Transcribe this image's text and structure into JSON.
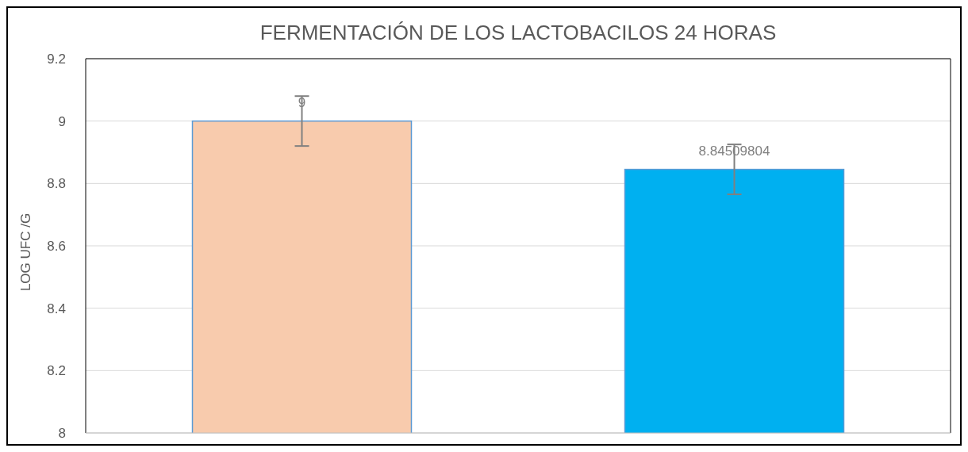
{
  "chart_data": {
    "type": "bar",
    "title": "FERMENTACIÓN  DE  LOS LACTOBACILOS 24  HORAS",
    "ylabel": "LOG  UFC /G",
    "categories": [
      null,
      null
    ],
    "values": [
      9,
      8.84509804
    ],
    "colors": [
      "#f8cbad",
      "#00b0f0"
    ],
    "errors": [
      0.08,
      0.08
    ],
    "ylim": [
      8,
      9.2
    ],
    "yticks": [
      8,
      8.2,
      8.4,
      8.6,
      8.8,
      9,
      9.2
    ],
    "grid": "y",
    "data_labels": true
  }
}
